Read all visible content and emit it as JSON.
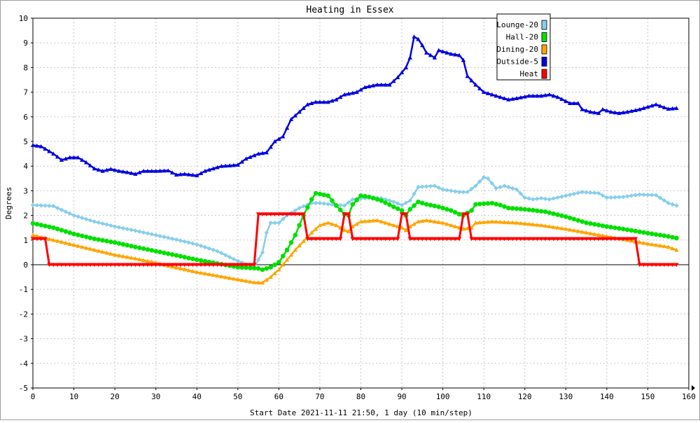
{
  "chart_data": {
    "type": "line",
    "title": "Heating in Essex",
    "xlabel": "Start Date 2021-11-11 21:50, 1 day (10 min/step)",
    "ylabel": "Degrees",
    "xlim": [
      0,
      160
    ],
    "ylim": [
      -5,
      10
    ],
    "xticks": [
      0,
      10,
      20,
      30,
      40,
      50,
      60,
      70,
      80,
      90,
      100,
      110,
      120,
      130,
      140,
      150,
      160
    ],
    "yticks": [
      -5,
      -4,
      -3,
      -2,
      -1,
      0,
      1,
      2,
      3,
      4,
      5,
      6,
      7,
      8,
      9,
      10
    ],
    "grid": true,
    "legend_position": "top-right",
    "series": [
      {
        "name": "Lounge-20",
        "color": "#87ceeb",
        "marker": "diamond",
        "points": [
          [
            0,
            2.42
          ],
          [
            5,
            2.38
          ],
          [
            6,
            2.3
          ],
          [
            10,
            2.0
          ],
          [
            15,
            1.75
          ],
          [
            20,
            1.55
          ],
          [
            25,
            1.38
          ],
          [
            30,
            1.2
          ],
          [
            35,
            1.02
          ],
          [
            40,
            0.82
          ],
          [
            45,
            0.55
          ],
          [
            50,
            0.15
          ],
          [
            54,
            -0.1
          ],
          [
            56,
            0.5
          ],
          [
            57,
            1.3
          ],
          [
            58,
            1.7
          ],
          [
            60,
            1.7
          ],
          [
            62,
            2.0
          ],
          [
            65,
            2.3
          ],
          [
            68,
            2.5
          ],
          [
            70,
            2.5
          ],
          [
            74,
            2.42
          ],
          [
            76,
            2.4
          ],
          [
            78,
            2.65
          ],
          [
            82,
            2.72
          ],
          [
            85,
            2.7
          ],
          [
            88,
            2.55
          ],
          [
            90,
            2.42
          ],
          [
            92,
            2.6
          ],
          [
            94,
            3.15
          ],
          [
            98,
            3.2
          ],
          [
            100,
            3.05
          ],
          [
            104,
            2.95
          ],
          [
            106,
            2.95
          ],
          [
            108,
            3.2
          ],
          [
            110,
            3.55
          ],
          [
            111,
            3.5
          ],
          [
            113,
            3.1
          ],
          [
            115,
            3.2
          ],
          [
            118,
            3.05
          ],
          [
            120,
            2.72
          ],
          [
            122,
            2.65
          ],
          [
            124,
            2.7
          ],
          [
            126,
            2.65
          ],
          [
            130,
            2.8
          ],
          [
            134,
            2.95
          ],
          [
            138,
            2.9
          ],
          [
            140,
            2.72
          ],
          [
            144,
            2.75
          ],
          [
            148,
            2.85
          ],
          [
            152,
            2.82
          ],
          [
            155,
            2.5
          ],
          [
            157,
            2.4
          ]
        ]
      },
      {
        "name": "Hall-20",
        "color": "#00e000",
        "marker": "circle",
        "points": [
          [
            0,
            1.68
          ],
          [
            5,
            1.5
          ],
          [
            10,
            1.25
          ],
          [
            15,
            1.05
          ],
          [
            20,
            0.9
          ],
          [
            25,
            0.72
          ],
          [
            30,
            0.55
          ],
          [
            35,
            0.38
          ],
          [
            40,
            0.2
          ],
          [
            45,
            0.05
          ],
          [
            50,
            -0.1
          ],
          [
            55,
            -0.15
          ],
          [
            56,
            -0.2
          ],
          [
            58,
            -0.1
          ],
          [
            60,
            0.1
          ],
          [
            62,
            0.6
          ],
          [
            64,
            1.2
          ],
          [
            66,
            2.0
          ],
          [
            68,
            2.65
          ],
          [
            69,
            2.9
          ],
          [
            72,
            2.8
          ],
          [
            74,
            2.4
          ],
          [
            76,
            2.05
          ],
          [
            77,
            2.0
          ],
          [
            78,
            2.45
          ],
          [
            80,
            2.8
          ],
          [
            82,
            2.75
          ],
          [
            85,
            2.6
          ],
          [
            88,
            2.35
          ],
          [
            90,
            2.2
          ],
          [
            91,
            2.0
          ],
          [
            92,
            2.25
          ],
          [
            94,
            2.55
          ],
          [
            96,
            2.45
          ],
          [
            99,
            2.35
          ],
          [
            102,
            2.2
          ],
          [
            104,
            2.05
          ],
          [
            105,
            2.0
          ],
          [
            107,
            2.2
          ],
          [
            108,
            2.45
          ],
          [
            112,
            2.5
          ],
          [
            114,
            2.42
          ],
          [
            116,
            2.3
          ],
          [
            120,
            2.25
          ],
          [
            125,
            2.15
          ],
          [
            130,
            1.95
          ],
          [
            135,
            1.7
          ],
          [
            140,
            1.55
          ],
          [
            145,
            1.42
          ],
          [
            150,
            1.28
          ],
          [
            155,
            1.15
          ],
          [
            157,
            1.08
          ]
        ]
      },
      {
        "name": "Dining-20",
        "color": "#ffa500",
        "marker": "triangle",
        "points": [
          [
            0,
            1.2
          ],
          [
            5,
            1.0
          ],
          [
            10,
            0.8
          ],
          [
            15,
            0.6
          ],
          [
            20,
            0.4
          ],
          [
            25,
            0.25
          ],
          [
            30,
            0.08
          ],
          [
            35,
            -0.12
          ],
          [
            40,
            -0.3
          ],
          [
            45,
            -0.45
          ],
          [
            50,
            -0.6
          ],
          [
            54,
            -0.72
          ],
          [
            56,
            -0.73
          ],
          [
            58,
            -0.5
          ],
          [
            60,
            -0.2
          ],
          [
            62,
            0.2
          ],
          [
            64,
            0.6
          ],
          [
            66,
            0.95
          ],
          [
            68,
            1.3
          ],
          [
            70,
            1.6
          ],
          [
            72,
            1.7
          ],
          [
            74,
            1.6
          ],
          [
            76,
            1.4
          ],
          [
            77,
            1.35
          ],
          [
            78,
            1.55
          ],
          [
            80,
            1.75
          ],
          [
            84,
            1.8
          ],
          [
            88,
            1.6
          ],
          [
            90,
            1.5
          ],
          [
            91,
            1.4
          ],
          [
            92,
            1.55
          ],
          [
            94,
            1.75
          ],
          [
            96,
            1.8
          ],
          [
            100,
            1.7
          ],
          [
            104,
            1.5
          ],
          [
            105,
            1.45
          ],
          [
            107,
            1.5
          ],
          [
            108,
            1.7
          ],
          [
            112,
            1.75
          ],
          [
            118,
            1.7
          ],
          [
            124,
            1.6
          ],
          [
            130,
            1.45
          ],
          [
            135,
            1.3
          ],
          [
            140,
            1.15
          ],
          [
            145,
            1.0
          ],
          [
            150,
            0.85
          ],
          [
            155,
            0.72
          ],
          [
            157,
            0.6
          ]
        ]
      },
      {
        "name": "Outside-5",
        "color": "#0000e0",
        "marker": "triangle",
        "points": [
          [
            0,
            4.85
          ],
          [
            2,
            4.8
          ],
          [
            5,
            4.5
          ],
          [
            7,
            4.25
          ],
          [
            9,
            4.35
          ],
          [
            11,
            4.35
          ],
          [
            13,
            4.15
          ],
          [
            15,
            3.9
          ],
          [
            17,
            3.8
          ],
          [
            19,
            3.88
          ],
          [
            21,
            3.8
          ],
          [
            23,
            3.75
          ],
          [
            25,
            3.68
          ],
          [
            27,
            3.8
          ],
          [
            30,
            3.8
          ],
          [
            33,
            3.82
          ],
          [
            35,
            3.65
          ],
          [
            37,
            3.68
          ],
          [
            40,
            3.62
          ],
          [
            42,
            3.8
          ],
          [
            44,
            3.9
          ],
          [
            46,
            4.0
          ],
          [
            48,
            4.02
          ],
          [
            50,
            4.05
          ],
          [
            52,
            4.3
          ],
          [
            55,
            4.5
          ],
          [
            57,
            4.55
          ],
          [
            59,
            5.0
          ],
          [
            61,
            5.2
          ],
          [
            62,
            5.55
          ],
          [
            63,
            5.9
          ],
          [
            65,
            6.2
          ],
          [
            67,
            6.5
          ],
          [
            69,
            6.6
          ],
          [
            72,
            6.6
          ],
          [
            74,
            6.7
          ],
          [
            76,
            6.9
          ],
          [
            79,
            7.0
          ],
          [
            81,
            7.2
          ],
          [
            84,
            7.3
          ],
          [
            87,
            7.3
          ],
          [
            89,
            7.6
          ],
          [
            91,
            8.0
          ],
          [
            92,
            8.4
          ],
          [
            93,
            9.25
          ],
          [
            94,
            9.15
          ],
          [
            95,
            8.9
          ],
          [
            96,
            8.6
          ],
          [
            98,
            8.4
          ],
          [
            99,
            8.7
          ],
          [
            100,
            8.65
          ],
          [
            102,
            8.55
          ],
          [
            104,
            8.5
          ],
          [
            105,
            8.3
          ],
          [
            106,
            7.65
          ],
          [
            108,
            7.3
          ],
          [
            110,
            7.0
          ],
          [
            113,
            6.85
          ],
          [
            116,
            6.7
          ],
          [
            118,
            6.75
          ],
          [
            121,
            6.85
          ],
          [
            124,
            6.85
          ],
          [
            126,
            6.9
          ],
          [
            128,
            6.8
          ],
          [
            131,
            6.55
          ],
          [
            133,
            6.55
          ],
          [
            134,
            6.3
          ],
          [
            136,
            6.2
          ],
          [
            138,
            6.15
          ],
          [
            139,
            6.3
          ],
          [
            141,
            6.2
          ],
          [
            143,
            6.15
          ],
          [
            145,
            6.2
          ],
          [
            148,
            6.3
          ],
          [
            151,
            6.45
          ],
          [
            152,
            6.5
          ],
          [
            155,
            6.32
          ],
          [
            157,
            6.35
          ]
        ]
      },
      {
        "name": "Heat",
        "color": "#ff0000",
        "marker": "triangle-down",
        "points": [
          [
            0,
            1.05
          ],
          [
            3,
            1.05
          ],
          [
            4,
            0.0
          ],
          [
            54,
            0.0
          ],
          [
            55,
            2.05
          ],
          [
            66,
            2.05
          ],
          [
            67,
            1.05
          ],
          [
            75,
            1.05
          ],
          [
            76,
            2.05
          ],
          [
            77,
            2.05
          ],
          [
            78,
            1.05
          ],
          [
            89,
            1.05
          ],
          [
            90,
            2.05
          ],
          [
            91,
            2.05
          ],
          [
            92,
            1.05
          ],
          [
            104,
            1.05
          ],
          [
            105,
            2.05
          ],
          [
            106,
            2.05
          ],
          [
            107,
            1.05
          ],
          [
            147,
            1.05
          ],
          [
            148,
            0.0
          ],
          [
            157,
            0.0
          ]
        ]
      }
    ]
  }
}
